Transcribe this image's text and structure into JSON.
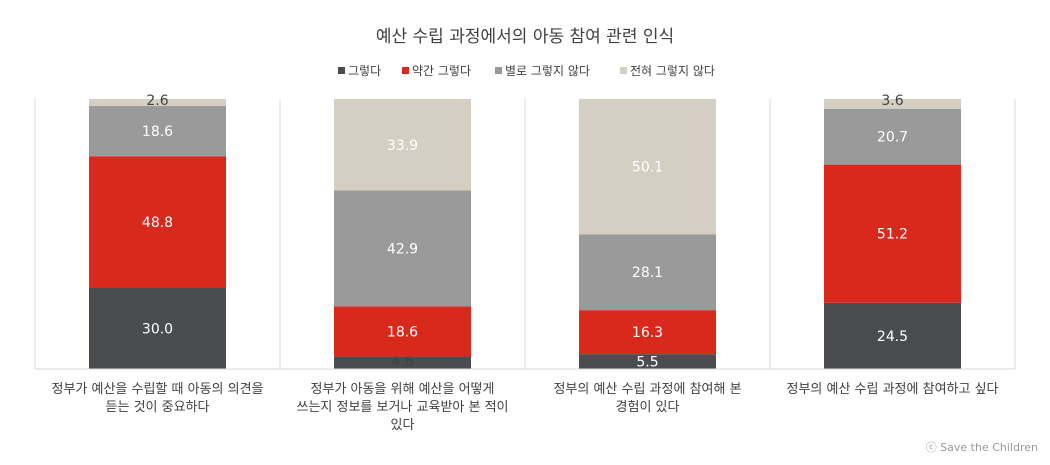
{
  "chart_data": {
    "type": "bar",
    "stacked": true,
    "title": "예산 수립 과정에서의 아동 참여 관련 인식",
    "legend_position": "top",
    "ylim": [
      0,
      100
    ],
    "grid": false,
    "categories": [
      [
        "정부가 예산을 수립할 때 아동의 의견을",
        "듣는 것이 중요하다"
      ],
      [
        "정부가 아동을 위해 예산을 어떻게",
        "쓰는지 정보를 보거나 교육받아 본 적이",
        "있다"
      ],
      [
        "정부의 예산 수립 과정에 참여해 본",
        "경험이 있다"
      ],
      [
        "정부의 예산 수립 과정에 참여하고 싶다"
      ]
    ],
    "series": [
      {
        "name": "그렇다",
        "color": "#4a4c50",
        "values": [
          30.0,
          4.6,
          5.5,
          24.5
        ]
      },
      {
        "name": "약간 그렇다",
        "color": "#d9291c",
        "values": [
          48.8,
          18.6,
          16.3,
          51.2
        ]
      },
      {
        "name": "별로 그렇지 않다",
        "color": "#9a9a9a",
        "values": [
          18.6,
          42.9,
          28.1,
          20.7
        ]
      },
      {
        "name": "전혀 그렇지 않다",
        "color": "#d5cfc3",
        "values": [
          2.6,
          33.9,
          50.1,
          3.6
        ]
      }
    ],
    "value_labels": [
      [
        "30.0",
        "4.6",
        "5.5",
        "24.5"
      ],
      [
        "48.8",
        "18.6",
        "16.3",
        "51.2"
      ],
      [
        "18.6",
        "42.9",
        "28.1",
        "20.7"
      ],
      [
        "2.6",
        "33.9",
        "50.1",
        "3.6"
      ]
    ]
  },
  "credit": "ⓒ Save the Children"
}
